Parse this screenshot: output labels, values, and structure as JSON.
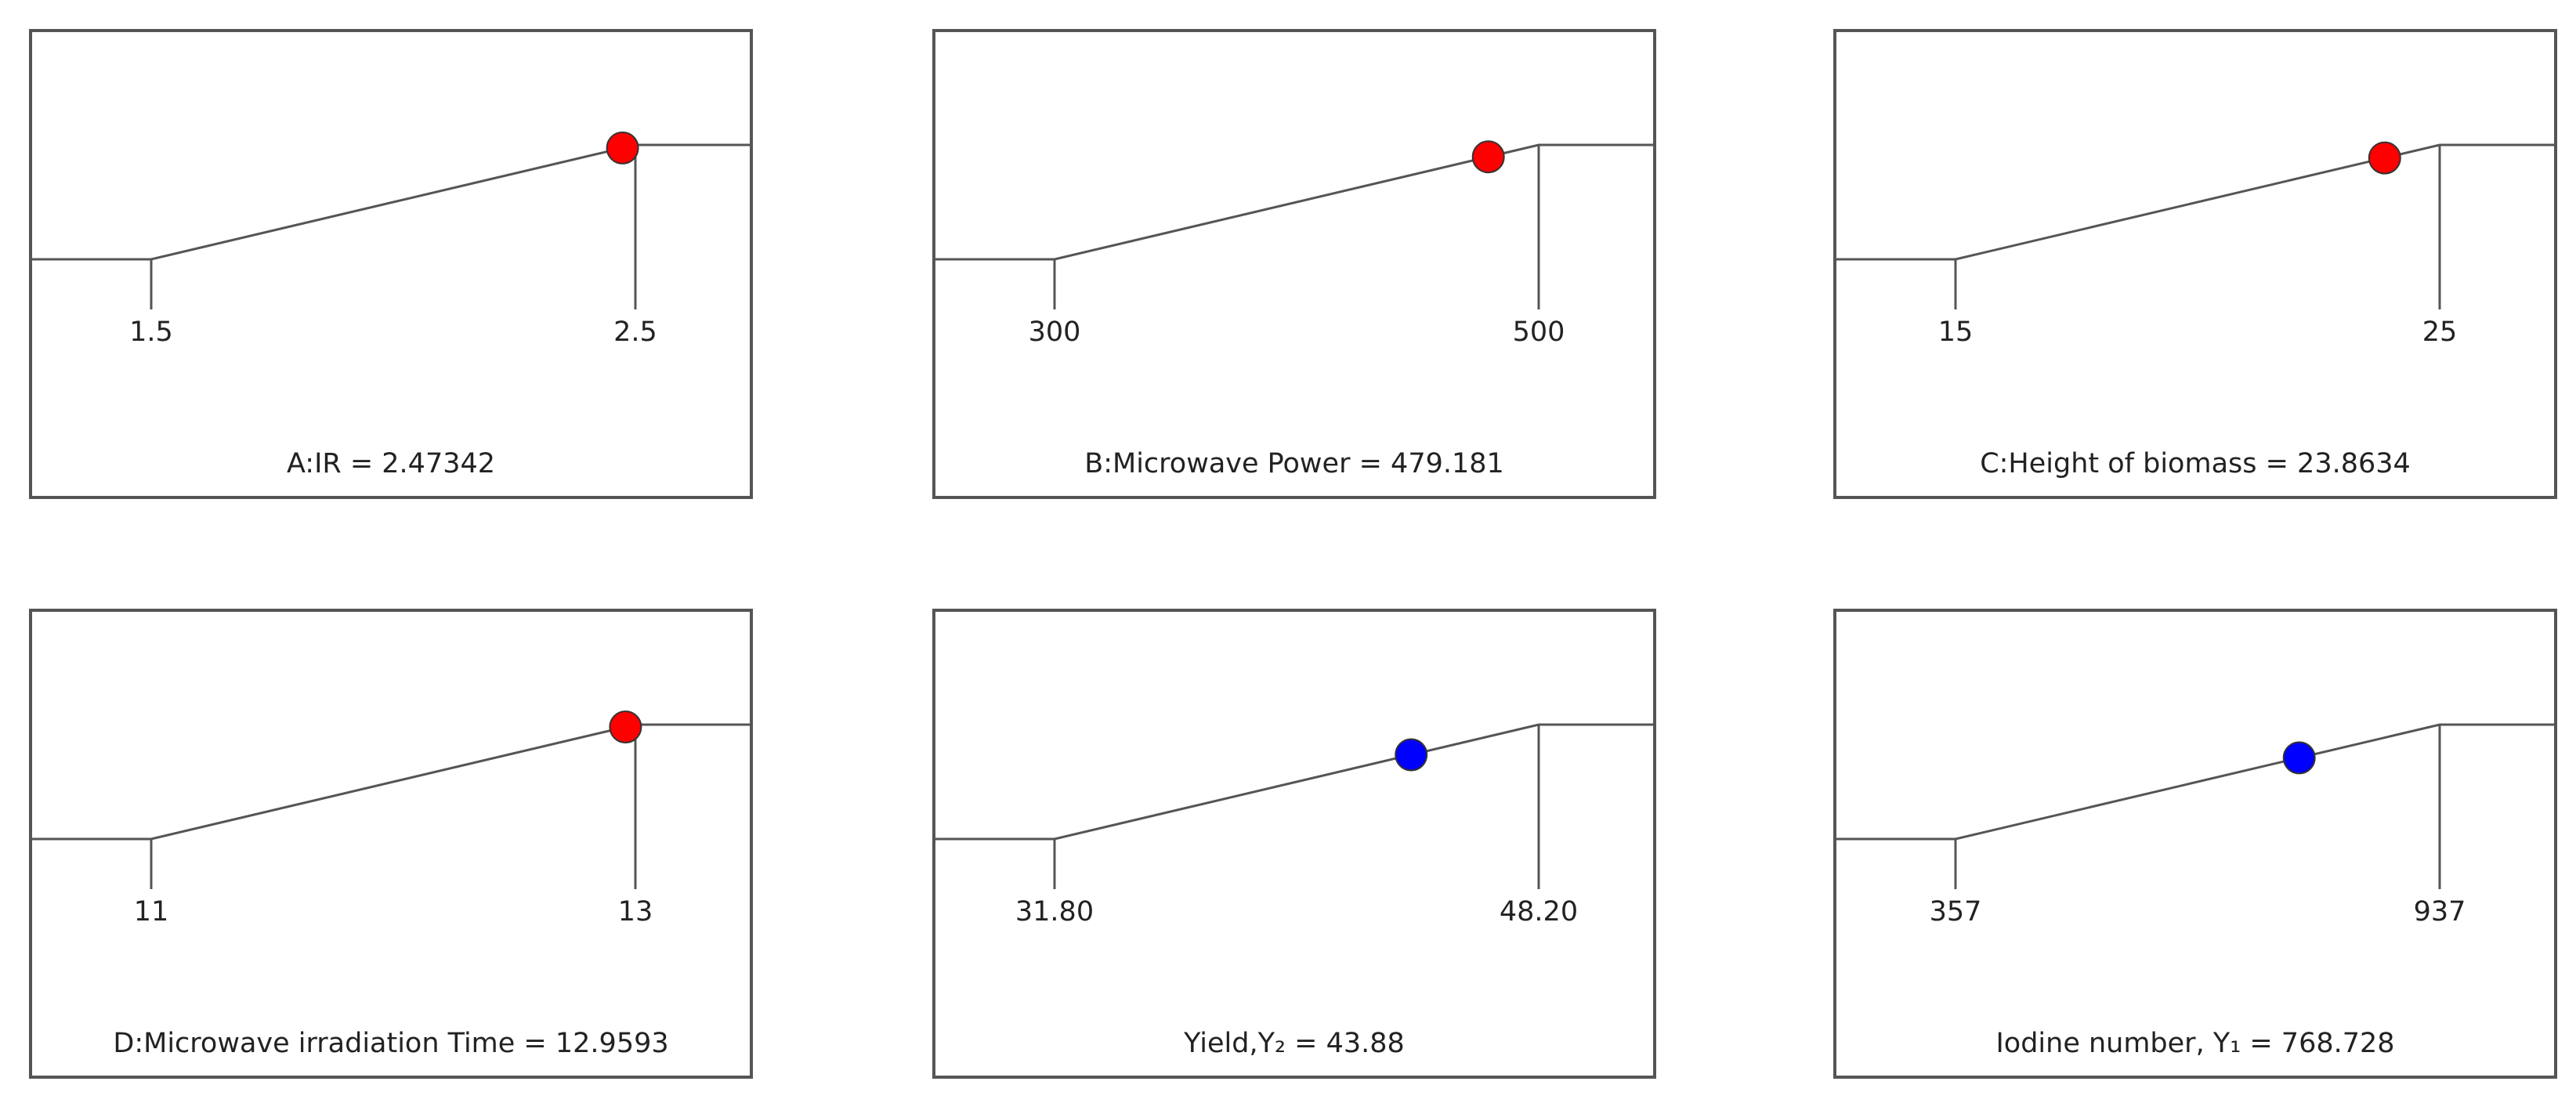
{
  "colors": {
    "factor_marker": "#ff0000",
    "response_marker": "#0000ff",
    "line": "#555555",
    "frame": "#555555"
  },
  "chart_data": [
    {
      "type": "line",
      "role": "factor",
      "name": "A:IR",
      "low": 1.5,
      "high": 2.5,
      "tick_labels": [
        "1.5",
        "2.5"
      ],
      "value": 2.47342,
      "label_text": "A:IR = 2.47342",
      "marker_color": "#ff0000"
    },
    {
      "type": "line",
      "role": "factor",
      "name": "B:Microwave Power",
      "low": 300,
      "high": 500,
      "tick_labels": [
        "300",
        "500"
      ],
      "value": 479.181,
      "label_text": "B:Microwave Power = 479.181",
      "marker_color": "#ff0000"
    },
    {
      "type": "line",
      "role": "factor",
      "name": "C:Height of biomass",
      "low": 15,
      "high": 25,
      "tick_labels": [
        "15",
        "25"
      ],
      "value": 23.8634,
      "label_text": "C:Height of biomass = 23.8634",
      "marker_color": "#ff0000"
    },
    {
      "type": "line",
      "role": "factor",
      "name": "D:Microwave irradiation Time",
      "low": 11,
      "high": 13,
      "tick_labels": [
        "11",
        "13"
      ],
      "value": 12.9593,
      "label_text": "D:Microwave irradiation Time = 12.9593",
      "marker_color": "#ff0000"
    },
    {
      "type": "line",
      "role": "response",
      "name": "Yield,Y₂",
      "low": 31.8,
      "high": 48.2,
      "tick_labels": [
        "31.80",
        "48.20"
      ],
      "value": 43.88,
      "label_text": "Yield,Y₂  = 43.88",
      "marker_color": "#0000ff"
    },
    {
      "type": "line",
      "role": "response",
      "name": "Iodine number, Y₁",
      "low": 357,
      "high": 937,
      "tick_labels": [
        "357",
        "937"
      ],
      "value": 768.728,
      "label_text": "Iodine number, Y₁  = 768.728",
      "marker_color": "#0000ff"
    }
  ]
}
